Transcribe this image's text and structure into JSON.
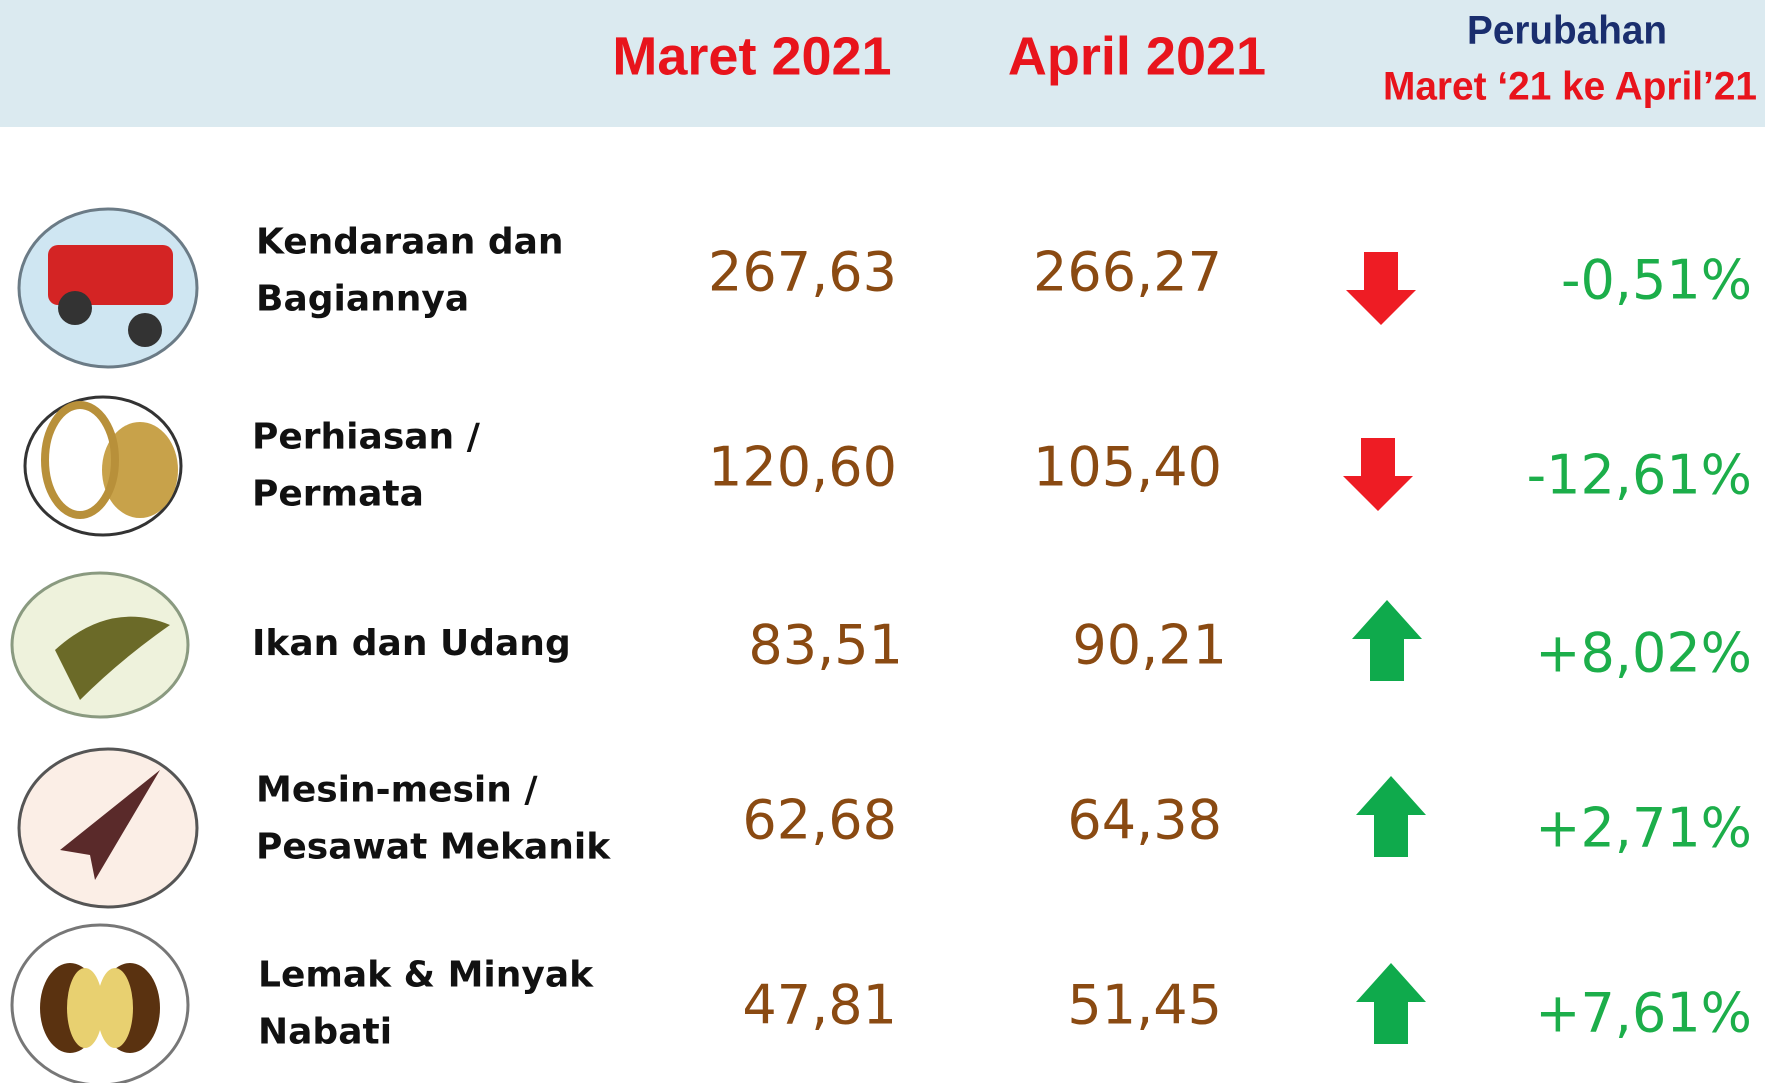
{
  "header": {
    "columns": [
      "Maret 2021",
      "April 2021"
    ],
    "change_title": "Perubahan",
    "change_subtitle": "Maret ‘21 ke April’21"
  },
  "rows": [
    {
      "name": [
        "Kendaraan dan",
        "Bagiannya"
      ],
      "march": "267,63",
      "april": "266,27",
      "change": "-0,51%"
    },
    {
      "name": [
        "Perhiasan /",
        "Permata"
      ],
      "march": "120,60",
      "april": "105,40",
      "change": "-12,61%"
    },
    {
      "name": [
        "Ikan dan Udang"
      ],
      "march": "83,51",
      "april": "90,21",
      "change": "+8,02%"
    },
    {
      "name": [
        "Mesin-mesin /",
        "Pesawat Mekanik"
      ],
      "march": "62,68",
      "april": "64,38",
      "change": "+2,71%"
    },
    {
      "name": [
        "Lemak & Minyak",
        "Nabati"
      ],
      "march": "47,81",
      "april": "51,45",
      "change": "+7,61%"
    }
  ]
}
